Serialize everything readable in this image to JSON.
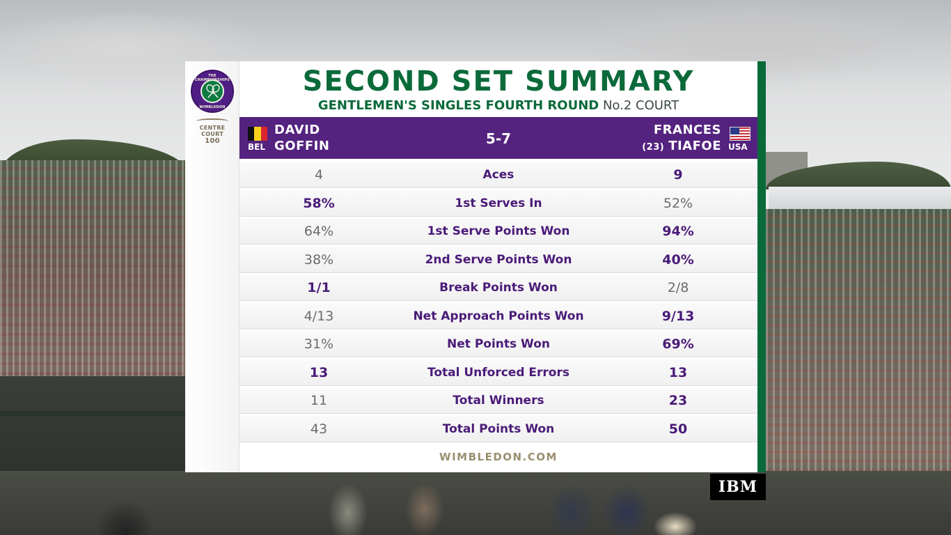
{
  "panel": {
    "title": "SECOND SET SUMMARY",
    "round": "GENTLEMEN'S SINGLES FOURTH ROUND",
    "court": "No.2 COURT",
    "logo": {
      "ring_top": "THE CHAMPIONSHIPS",
      "ring_bottom": "WIMBLEDON",
      "centre_court_line1": "CENTRE",
      "centre_court_line2": "COURT",
      "centre_court_line3": "100"
    },
    "footer": "WIMBLEDON.COM"
  },
  "players": {
    "left": {
      "first": "DAVID",
      "last": "GOFFIN",
      "country": "BEL",
      "flag_colors": [
        "#111111",
        "#f7d21b",
        "#d9252d"
      ]
    },
    "right": {
      "first": "FRANCES",
      "last": "TIAFOE",
      "seed": "(23)",
      "country": "USA"
    },
    "score": "5-7"
  },
  "stats": [
    {
      "label": "Aces",
      "left": "4",
      "right": "9",
      "leader": "right"
    },
    {
      "label": "1st Serves In",
      "left": "58%",
      "right": "52%",
      "leader": "left"
    },
    {
      "label": "1st Serve Points Won",
      "left": "64%",
      "right": "94%",
      "leader": "right"
    },
    {
      "label": "2nd Serve Points Won",
      "left": "38%",
      "right": "40%",
      "leader": "right"
    },
    {
      "label": "Break Points Won",
      "left": "1/1",
      "right": "2/8",
      "leader": "left"
    },
    {
      "label": "Net Approach Points Won",
      "left": "4/13",
      "right": "9/13",
      "leader": "right"
    },
    {
      "label": "Net Points Won",
      "left": "31%",
      "right": "69%",
      "leader": "right"
    },
    {
      "label": "Total Unforced Errors",
      "left": "13",
      "right": "13",
      "leader": "both"
    },
    {
      "label": "Total Winners",
      "left": "11",
      "right": "23",
      "leader": "right"
    },
    {
      "label": "Total Points Won",
      "left": "43",
      "right": "50",
      "leader": "right"
    }
  ],
  "sponsor": "IBM",
  "colors": {
    "green": "#0b6a3a",
    "purple": "#54227f",
    "stat_purple": "#4a1b78",
    "gold": "#9a8f6e"
  }
}
